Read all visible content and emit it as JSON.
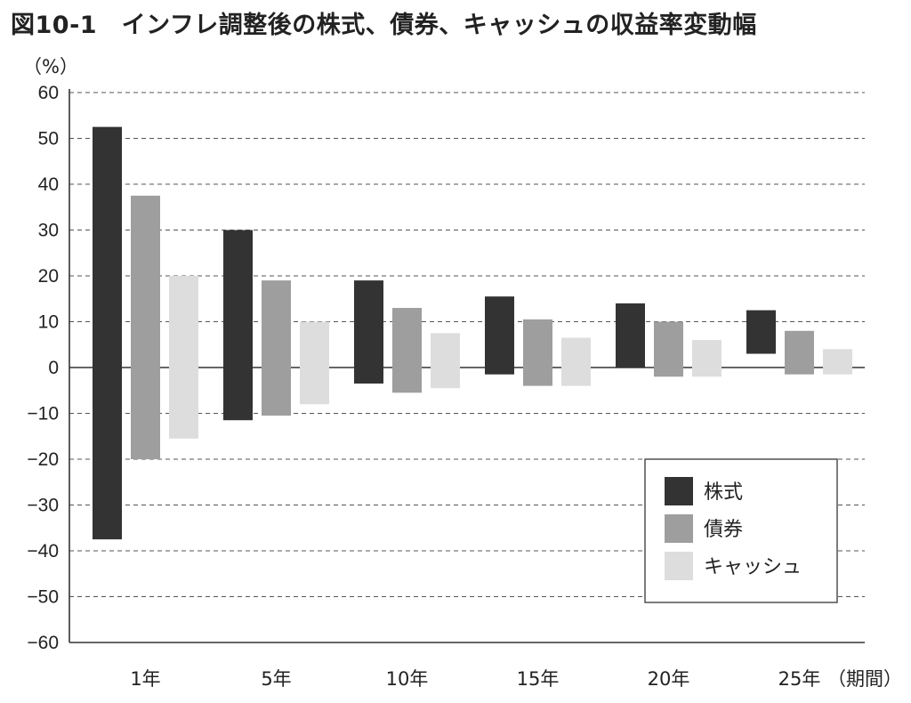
{
  "chart_data": {
    "type": "bar",
    "title": "図10-1　インフレ調整後の株式、債券、キャッシュの収益率変動幅",
    "ylabel": "（%）",
    "xlabel": "（期間）",
    "categories": [
      "1年",
      "5年",
      "10年",
      "15年",
      "20年",
      "25年"
    ],
    "ylim": [
      -60,
      60
    ],
    "yticks": [
      60,
      50,
      40,
      30,
      20,
      10,
      0,
      -10,
      -20,
      -30,
      -40,
      -50,
      -60
    ],
    "ytick_labels": [
      "60",
      "50",
      "40",
      "30",
      "20",
      "10",
      "0",
      "−10",
      "−20",
      "−30",
      "−40",
      "−50",
      "−60"
    ],
    "grid": true,
    "legend_position": "bottom-right",
    "series": [
      {
        "name": "株式",
        "color": "#333333",
        "ranges": [
          [
            -37.5,
            52.5
          ],
          [
            -11.5,
            30
          ],
          [
            -3.5,
            19
          ],
          [
            -1.5,
            15.5
          ],
          [
            0,
            14
          ],
          [
            3,
            12.5
          ]
        ]
      },
      {
        "name": "債券",
        "color": "#9e9e9e",
        "ranges": [
          [
            -20,
            37.5
          ],
          [
            -10.5,
            19
          ],
          [
            -5.5,
            13
          ],
          [
            -4,
            10.5
          ],
          [
            -2,
            10
          ],
          [
            -1.5,
            8
          ]
        ]
      },
      {
        "name": "キャッシュ",
        "color": "#dddddd",
        "ranges": [
          [
            -15.5,
            20
          ],
          [
            -8,
            10
          ],
          [
            -4.5,
            7.5
          ],
          [
            -4,
            6.5
          ],
          [
            -2,
            6
          ],
          [
            -1.5,
            4
          ]
        ]
      }
    ]
  }
}
